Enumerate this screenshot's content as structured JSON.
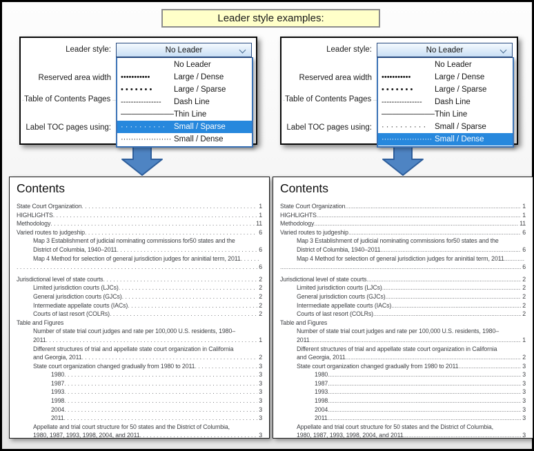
{
  "title": {
    "label": "Leader style examples:"
  },
  "dialog": {
    "leader_style_label": "Leader style:",
    "combo_value": "No Leader",
    "reserved_label": "Reserved area width",
    "toc_pages_label": "Table of Contents Pages",
    "label_toc_label": "Label TOC pages using:",
    "options": [
      {
        "label": "No Leader",
        "swatch": ""
      },
      {
        "label": "Large / Dense",
        "swatch": "•••••••••••"
      },
      {
        "label": "Large / Sparse",
        "swatch": "• • • • • • •"
      },
      {
        "label": "Dash Line",
        "swatch": "----------------"
      },
      {
        "label": "Thin Line",
        "swatch": "──────────"
      },
      {
        "label": "Small / Sparse",
        "swatch": "· · · · · · · · · ·"
      },
      {
        "label": "Small / Dense",
        "swatch": "····················"
      }
    ]
  },
  "panels": [
    {
      "selected_option": "Small / Sparse",
      "leader_pattern": ".  "
    },
    {
      "selected_option": "Small / Dense",
      "leader_pattern": "."
    }
  ],
  "contents": {
    "heading": "Contents",
    "entries": [
      {
        "indent": 0,
        "text": "State Court Organization",
        "leader": true,
        "page": "1"
      },
      {
        "indent": 0,
        "text": "HIGHLIGHTS",
        "leader": true,
        "page": "1"
      },
      {
        "indent": 0,
        "text": "Methodology",
        "leader": true,
        "page": "11"
      },
      {
        "indent": 0,
        "text": "Varied routes to judgeship",
        "leader": true,
        "page": "6"
      },
      {
        "indent": 1,
        "text": "Map 3 Establishment of judicial nominating commissions for50 states and the",
        "leader": false,
        "page": ""
      },
      {
        "indent": 1,
        "text": "District of Columbia, 1940–2011",
        "leader": true,
        "page": "6"
      },
      {
        "indent": 1,
        "text": "Map 4 Method for selection of general jurisdiction judges for aninitial term, 2011",
        "leader": true,
        "page": ""
      },
      {
        "indent": 0,
        "text": "",
        "leader": true,
        "page": "6",
        "gap_after": true
      },
      {
        "indent": 0,
        "text": "Jurisdictional level of state courts",
        "leader": true,
        "page": "2"
      },
      {
        "indent": 1,
        "text": "Limited jurisdiction courts (LJCs)",
        "leader": true,
        "page": "2"
      },
      {
        "indent": 1,
        "text": "General jurisdiction courts (GJCs)",
        "leader": true,
        "page": "2"
      },
      {
        "indent": 1,
        "text": "Intermediate appellate courts (IACs)",
        "leader": true,
        "page": "2"
      },
      {
        "indent": 1,
        "text": "Courts of last resort (COLRs)",
        "leader": true,
        "page": "2"
      },
      {
        "indent": 0,
        "text": "Table and Figures",
        "leader": false,
        "page": ""
      },
      {
        "indent": 1,
        "text": "Number of state trial court judges and rate per 100,000 U.S. residents, 1980–",
        "leader": false,
        "page": ""
      },
      {
        "indent": 1,
        "text": "2011",
        "leader": true,
        "page": "1"
      },
      {
        "indent": 1,
        "text": "Different structures of trial and appellate state court organization in California",
        "leader": false,
        "page": ""
      },
      {
        "indent": 1,
        "text": "and Georgia, 2011",
        "leader": true,
        "page": "2"
      },
      {
        "indent": 1,
        "text": "State court organization changed gradually from 1980 to 2011",
        "leader": true,
        "page": "3"
      },
      {
        "indent": 2,
        "text": "1980",
        "leader": true,
        "page": "3"
      },
      {
        "indent": 2,
        "text": "1987",
        "leader": true,
        "page": "3"
      },
      {
        "indent": 2,
        "text": "1993",
        "leader": true,
        "page": "3"
      },
      {
        "indent": 2,
        "text": "1998",
        "leader": true,
        "page": "3"
      },
      {
        "indent": 2,
        "text": "2004",
        "leader": true,
        "page": "3"
      },
      {
        "indent": 2,
        "text": "2011",
        "leader": true,
        "page": "3"
      },
      {
        "indent": 1,
        "text": "Appellate and trial court structure for 50 states and the District of Columbia,",
        "leader": false,
        "page": ""
      },
      {
        "indent": 1,
        "text": "1980, 1987, 1993, 1998, 2004, and 2011",
        "leader": true,
        "page": "3"
      }
    ]
  },
  "colors": {
    "highlight_blue": "#2788dd",
    "arrow_fill": "#4e84c3",
    "arrow_stroke": "#2e5e9b",
    "title_bg": "#ffffc9",
    "combo_border": "#24477e",
    "list_border": "#3a72b6"
  }
}
